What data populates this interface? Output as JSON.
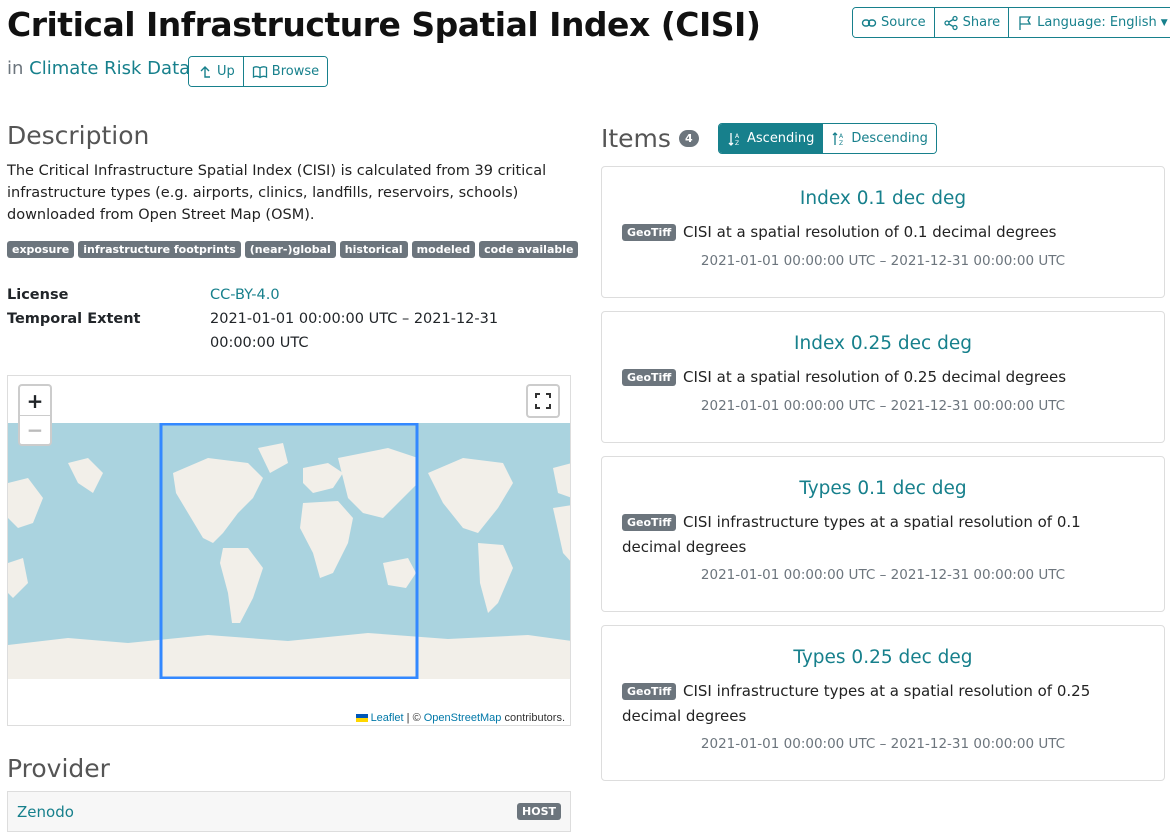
{
  "header": {
    "title": "Critical Infrastructure Spatial Index (CISI)",
    "crumb_prefix": "in",
    "crumb_link": "Climate Risk Data",
    "nav": {
      "up": "Up",
      "browse": "Browse"
    },
    "top": {
      "source": "Source",
      "share": "Share",
      "language": "Language: English"
    }
  },
  "description": {
    "heading": "Description",
    "text": "The Critical Infrastructure Spatial Index (CISI) is calculated from 39 critical infrastructure types (e.g. airports, clinics, landfills, reservoirs, schools) downloaded from Open Street Map (OSM).",
    "tags": [
      "exposure",
      "infrastructure footprints",
      "(near-)global",
      "historical",
      "modeled",
      "code available"
    ]
  },
  "metadata": [
    {
      "key": "License",
      "value": "CC-BY-4.0",
      "is_link": true
    },
    {
      "key": "Temporal Extent",
      "value": "2021-01-01 00:00:00 UTC – 2021-12-31 00:00:00 UTC",
      "is_link": false
    }
  ],
  "map": {
    "zoom_in": "+",
    "zoom_out": "−",
    "attribution": {
      "leaflet": "Leaflet",
      "separator": "| ©",
      "osm": "OpenStreetMap",
      "suffix": "contributors."
    },
    "colors": {
      "water": "#aad3df",
      "land": "#f2efe9",
      "bbox": "#3388ff"
    }
  },
  "provider": {
    "heading": "Provider",
    "name": "Zenodo",
    "role": "HOST"
  },
  "items": {
    "heading": "Items",
    "count": "4",
    "sort": {
      "asc": "Ascending",
      "desc": "Descending"
    },
    "list": [
      {
        "title": "Index 0.1 dec deg",
        "format": "GeoTiff",
        "desc": "CISI at a spatial resolution of 0.1 decimal degrees",
        "dates": "2021-01-01 00:00:00 UTC – 2021-12-31 00:00:00 UTC"
      },
      {
        "title": "Index 0.25 dec deg",
        "format": "GeoTiff",
        "desc": "CISI at a spatial resolution of 0.25 decimal degrees",
        "dates": "2021-01-01 00:00:00 UTC – 2021-12-31 00:00:00 UTC"
      },
      {
        "title": "Types 0.1 dec deg",
        "format": "GeoTiff",
        "desc": "CISI infrastructure types at a spatial resolution of 0.1 decimal degrees",
        "dates": "2021-01-01 00:00:00 UTC – 2021-12-31 00:00:00 UTC"
      },
      {
        "title": "Types 0.25 dec deg",
        "format": "GeoTiff",
        "desc": "CISI infrastructure types at a spatial resolution of 0.25 decimal degrees",
        "dates": "2021-01-01 00:00:00 UTC – 2021-12-31 00:00:00 UTC"
      }
    ]
  },
  "colors": {
    "accent": "#17808c",
    "badge": "#6c757d"
  }
}
